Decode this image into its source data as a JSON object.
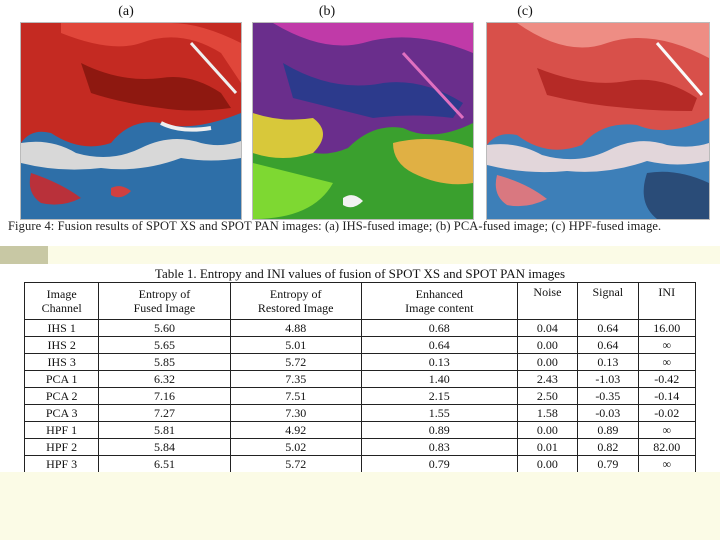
{
  "figure": {
    "panel_labels": [
      "(a)",
      "(b)",
      "(c)"
    ],
    "caption": "Figure 4: Fusion results of SPOT XS and SPOT PAN images: (a) IHS-fused image; (b) PCA-fused image; (c) HPF-fused image."
  },
  "table": {
    "title": "Table 1.  Entropy and INI values of fusion of SPOT XS and SPOT PAN images",
    "headers": [
      [
        "Image",
        "Channel"
      ],
      [
        "Entropy of",
        "Fused Image"
      ],
      [
        "Entropy of",
        "Restored Image"
      ],
      [
        "Enhanced",
        "Image content"
      ],
      [
        "Noise",
        ""
      ],
      [
        "Signal",
        ""
      ],
      [
        "INI",
        ""
      ]
    ],
    "rows": [
      [
        "IHS 1",
        "5.60",
        "4.88",
        "0.68",
        "0.04",
        "0.64",
        "16.00"
      ],
      [
        "IHS 2",
        "5.65",
        "5.01",
        "0.64",
        "0.00",
        "0.64",
        "∞"
      ],
      [
        "IHS 3",
        "5.85",
        "5.72",
        "0.13",
        "0.00",
        "0.13",
        "∞"
      ],
      [
        "PCA 1",
        "6.32",
        "7.35",
        "1.40",
        "2.43",
        "-1.03",
        "-0.42"
      ],
      [
        "PCA 2",
        "7.16",
        "7.51",
        "2.15",
        "2.50",
        "-0.35",
        "-0.14"
      ],
      [
        "PCA 3",
        "7.27",
        "7.30",
        "1.55",
        "1.58",
        "-0.03",
        "-0.02"
      ],
      [
        "HPF 1",
        "5.81",
        "4.92",
        "0.89",
        "0.00",
        "0.89",
        "∞"
      ],
      [
        "HPF 2",
        "5.84",
        "5.02",
        "0.83",
        "0.01",
        "0.82",
        "82.00"
      ],
      [
        "HPF 3",
        "6.51",
        "5.72",
        "0.79",
        "0.00",
        "0.79",
        "∞"
      ]
    ]
  },
  "colors": {
    "background": "#ffffff",
    "accent_bar": "#c8c8a4",
    "band": "#fbfbe6"
  }
}
